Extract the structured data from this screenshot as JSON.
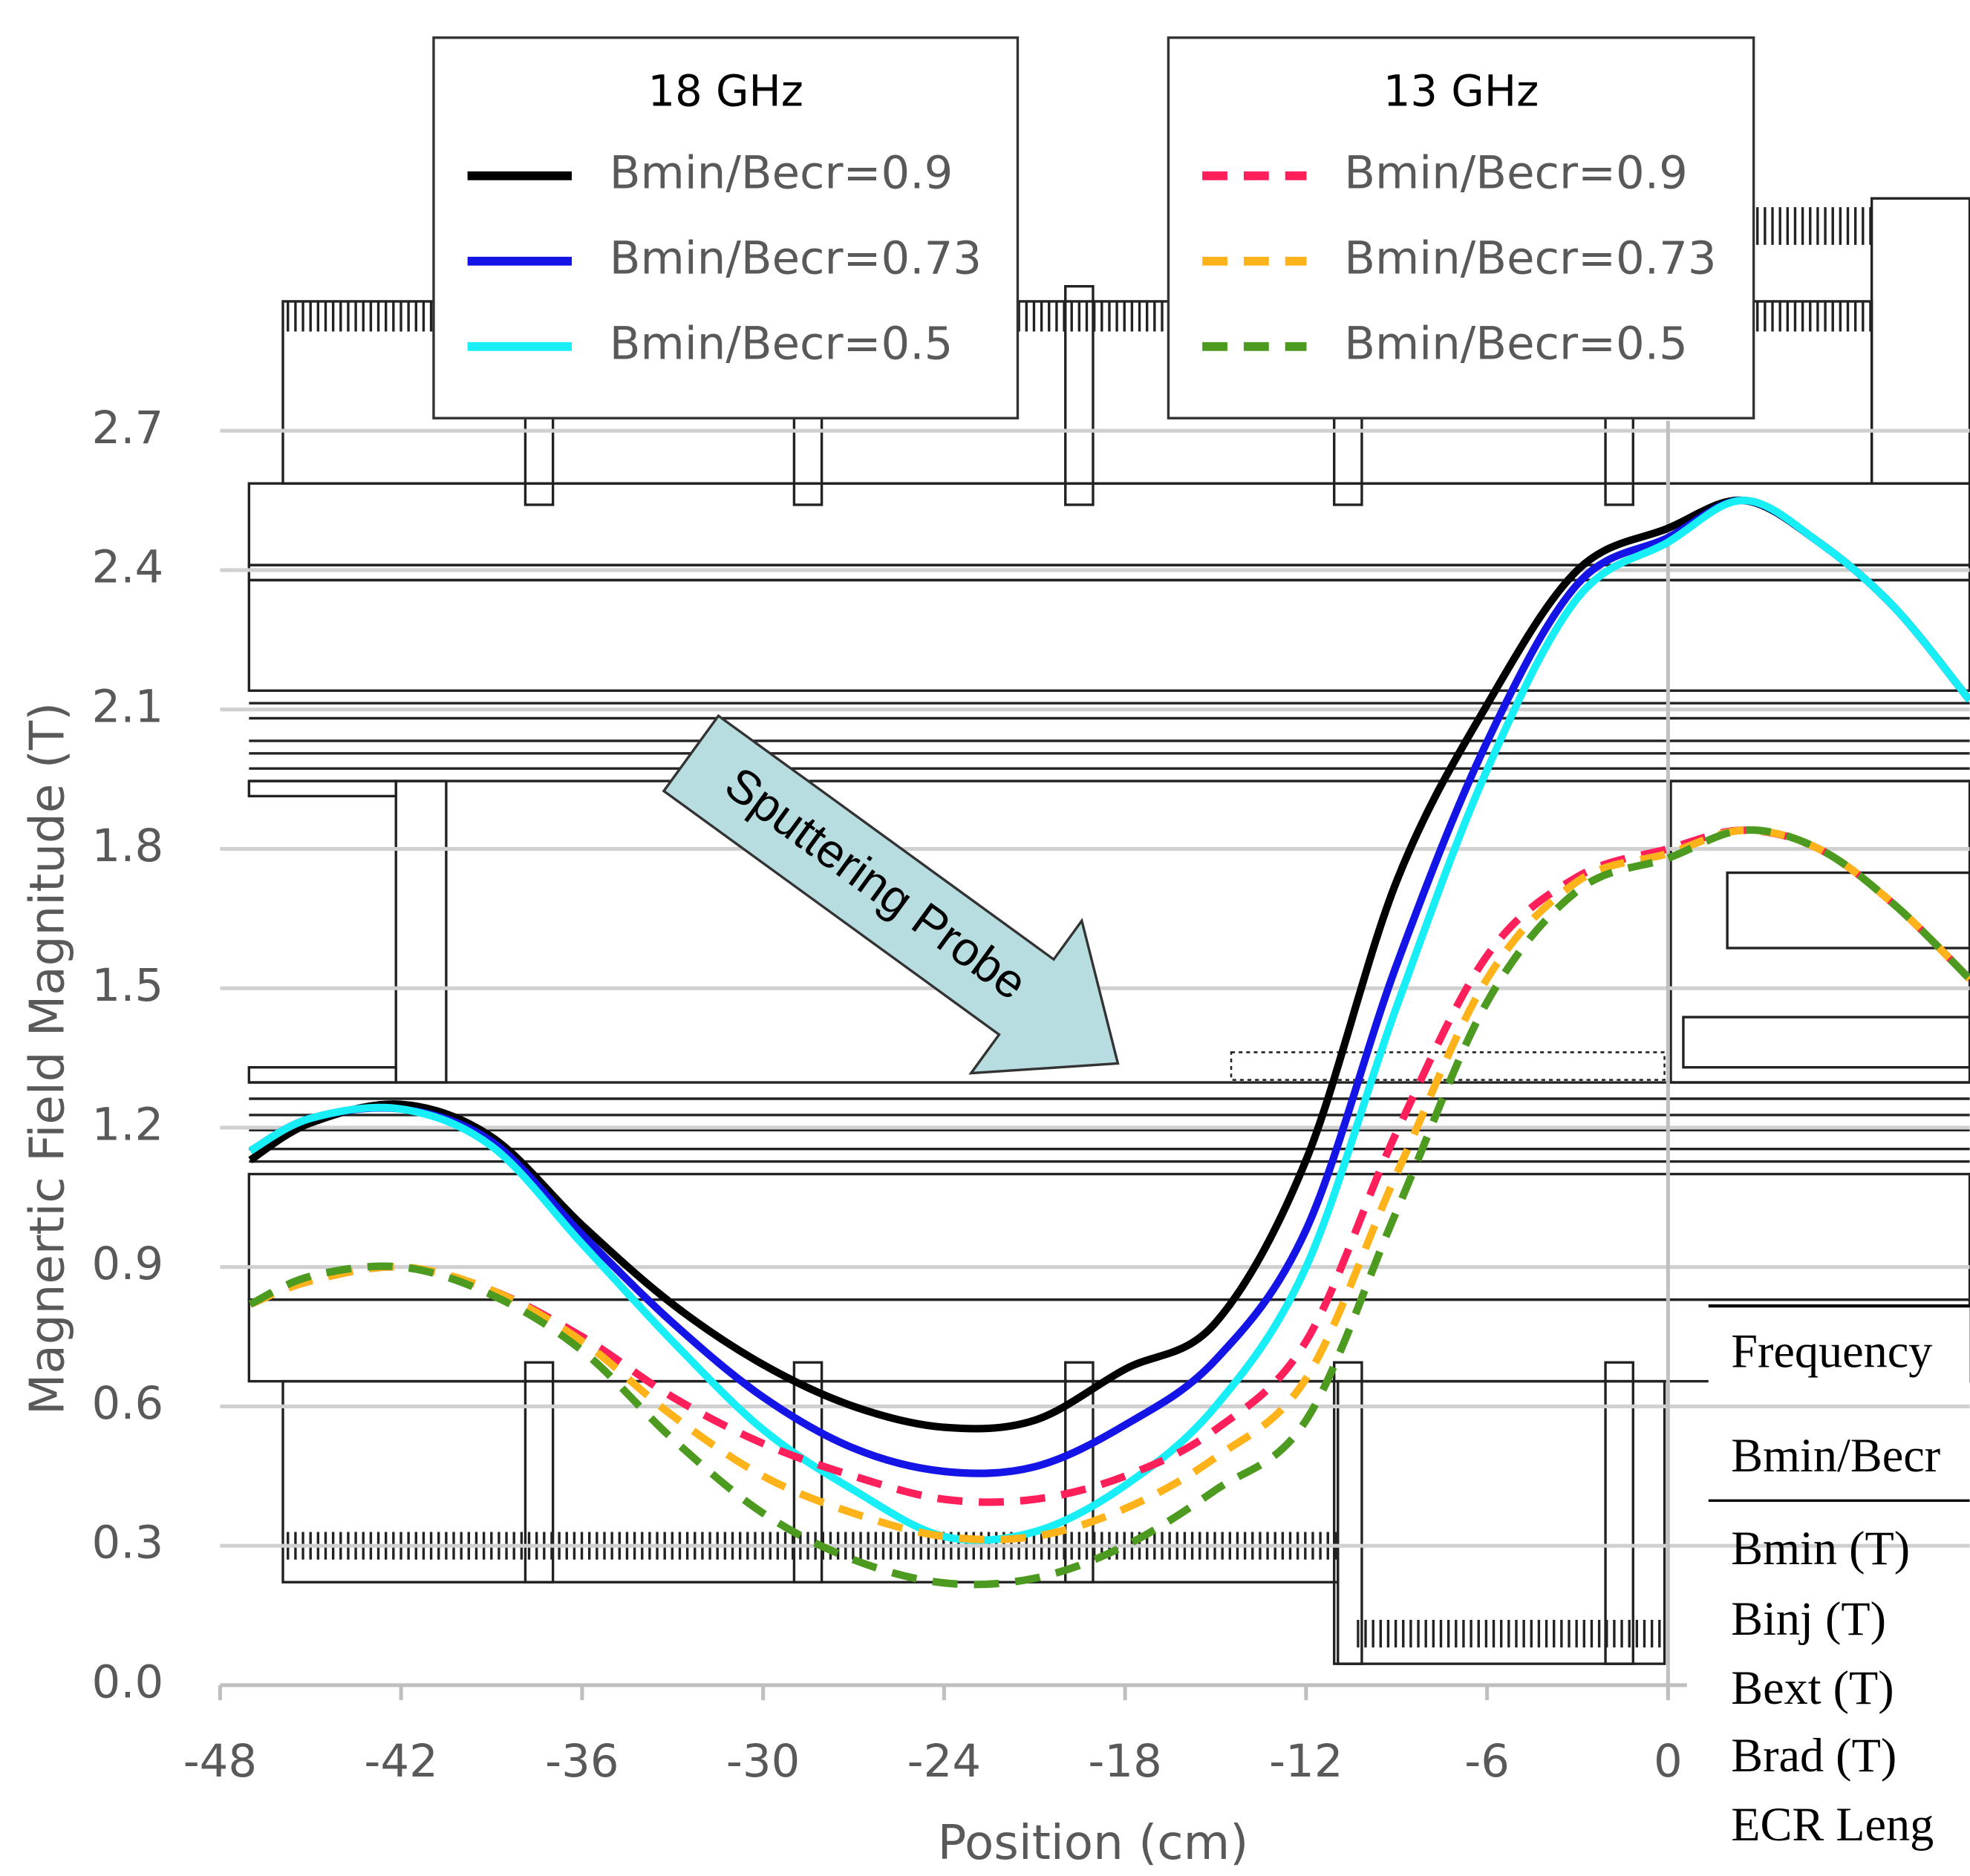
{
  "chart_data": {
    "type": "line",
    "xlabel": "Position (cm)",
    "ylabel": "Magnertic Field Magnitude (T)",
    "x": [
      -47,
      -45,
      -42,
      -39,
      -36,
      -33,
      -30,
      -27,
      -24,
      -21,
      -18,
      -15,
      -12,
      -9,
      -6,
      -3,
      0,
      2.5,
      5,
      7.5,
      10
    ],
    "xlim": [
      -48,
      10
    ],
    "xticks": [
      -48,
      -42,
      -36,
      -30,
      -24,
      -18,
      -12,
      -6,
      0
    ],
    "ylim": [
      0,
      2.7
    ],
    "yticks": [
      {
        "value": 0,
        "label": "0.0"
      },
      0.3,
      0.6,
      0.9,
      1.2,
      1.5,
      1.8,
      2.1,
      2.4,
      2.7
    ],
    "grid": true,
    "legend_titles": [
      "18 GHz",
      "13 GHz"
    ],
    "series": [
      {
        "name": "Bmin/Becr=0.9",
        "color": "#000000",
        "dash": false,
        "values": [
          1.13,
          1.21,
          1.25,
          1.18,
          0.99,
          0.82,
          0.69,
          0.6,
          0.555,
          0.57,
          0.68,
          0.78,
          1.13,
          1.73,
          2.11,
          2.4,
          2.49,
          2.55,
          2.46,
          2.32,
          2.12
        ]
      },
      {
        "name": "Bmin/Becr=0.73",
        "color": "#1414e6",
        "dash": false,
        "values": [
          1.15,
          1.22,
          1.24,
          1.17,
          0.97,
          0.78,
          0.62,
          0.51,
          0.46,
          0.47,
          0.56,
          0.7,
          0.98,
          1.55,
          2.03,
          2.37,
          2.47,
          2.55,
          2.46,
          2.32,
          2.12
        ]
      },
      {
        "name": "Bmin/Becr=0.5",
        "color": "#17eef5",
        "dash": false,
        "values": [
          1.15,
          1.22,
          1.24,
          1.16,
          0.95,
          0.74,
          0.55,
          0.42,
          0.32,
          0.33,
          0.43,
          0.6,
          0.9,
          1.46,
          1.97,
          2.34,
          2.46,
          2.55,
          2.46,
          2.32,
          2.12
        ]
      },
      {
        "name": "Bmin/Becr=0.9",
        "color": "#ff1f5a",
        "dash": true,
        "values": [
          0.82,
          0.87,
          0.9,
          0.85,
          0.75,
          0.62,
          0.52,
          0.45,
          0.4,
          0.4,
          0.45,
          0.55,
          0.74,
          1.19,
          1.57,
          1.74,
          1.8,
          1.84,
          1.8,
          1.68,
          1.52
        ]
      },
      {
        "name": "Bmin/Becr=0.73",
        "color": "#ffb31a",
        "dash": true,
        "values": [
          0.82,
          0.87,
          0.9,
          0.85,
          0.74,
          0.58,
          0.45,
          0.37,
          0.32,
          0.32,
          0.38,
          0.49,
          0.66,
          1.1,
          1.52,
          1.73,
          1.79,
          1.84,
          1.8,
          1.68,
          1.52
        ]
      },
      {
        "name": "Bmin/Becr=0.5",
        "color": "#4c9a1f",
        "dash": true,
        "values": [
          0.82,
          0.88,
          0.9,
          0.84,
          0.72,
          0.53,
          0.37,
          0.27,
          0.22,
          0.23,
          0.3,
          0.42,
          0.57,
          1.02,
          1.47,
          1.71,
          1.78,
          1.84,
          1.8,
          1.68,
          1.52
        ]
      }
    ],
    "annotation": "Sputtering Probe"
  },
  "table": {
    "rows": [
      "Frequency",
      "Bmin/Becr",
      "Bmin (T)",
      "Binj (T)",
      "Bext (T)",
      "Brad (T)",
      "ECR Leng"
    ]
  }
}
